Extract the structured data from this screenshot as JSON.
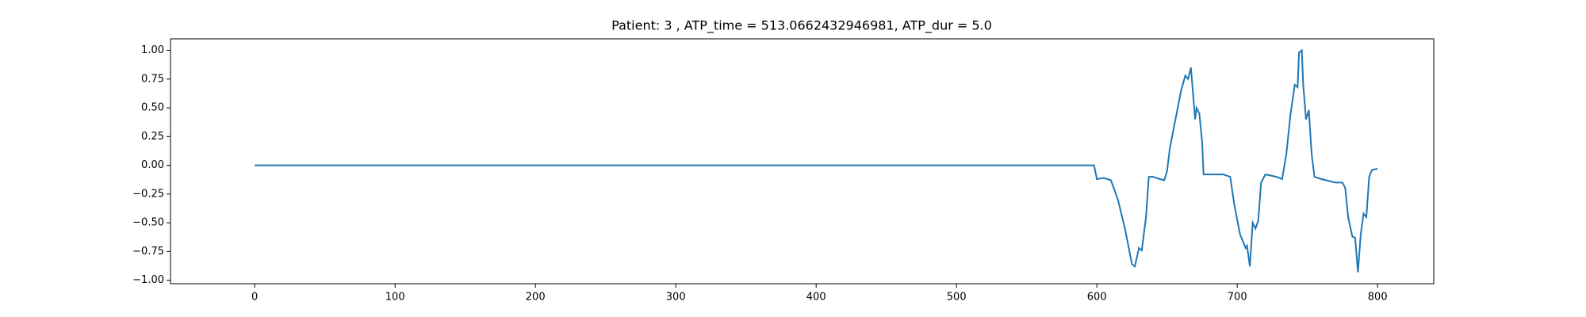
{
  "chart_data": {
    "type": "line",
    "title": "Patient: 3 , ATP_time = 513.0662432946981, ATP_dur = 5.0",
    "x": [
      0,
      598,
      600,
      605,
      610,
      615,
      620,
      625,
      627,
      630,
      632,
      635,
      637,
      640,
      645,
      648,
      650,
      652,
      656,
      660,
      663,
      665,
      667,
      668,
      670,
      671,
      673,
      675,
      676,
      680,
      690,
      695,
      698,
      702,
      706,
      707,
      709,
      711,
      713,
      715,
      717,
      720,
      728,
      732,
      735,
      738,
      741,
      743,
      744,
      746,
      747,
      749,
      751,
      753,
      755,
      760,
      770,
      775,
      777,
      779,
      782,
      784,
      786,
      788,
      790,
      792,
      794,
      796,
      800
    ],
    "series": [
      {
        "color": "#1f77b4",
        "values": [
          0,
          0,
          -0.12,
          -0.11,
          -0.13,
          -0.3,
          -0.55,
          -0.86,
          -0.88,
          -0.72,
          -0.74,
          -0.45,
          -0.1,
          -0.1,
          -0.12,
          -0.13,
          -0.05,
          0.15,
          0.4,
          0.65,
          0.78,
          0.75,
          0.85,
          0.7,
          0.4,
          0.5,
          0.45,
          0.2,
          -0.08,
          -0.08,
          -0.08,
          -0.1,
          -0.35,
          -0.6,
          -0.72,
          -0.7,
          -0.88,
          -0.5,
          -0.55,
          -0.48,
          -0.15,
          -0.08,
          -0.1,
          -0.12,
          0.1,
          0.45,
          0.7,
          0.68,
          0.98,
          1.0,
          0.7,
          0.4,
          0.48,
          0.1,
          -0.1,
          -0.12,
          -0.15,
          -0.15,
          -0.2,
          -0.45,
          -0.62,
          -0.63,
          -0.93,
          -0.6,
          -0.42,
          -0.45,
          -0.1,
          -0.04,
          -0.03
        ]
      }
    ],
    "xlim": [
      -60,
      840
    ],
    "xticks": [
      0,
      100,
      200,
      300,
      400,
      500,
      600,
      700,
      800
    ],
    "ylim": [
      -1.03,
      1.1
    ],
    "yticks": [
      {
        "value": -1,
        "label": "−1.00"
      },
      {
        "value": -0.75,
        "label": "−0.75"
      },
      {
        "value": -0.5,
        "label": "−0.50"
      },
      {
        "value": -0.25,
        "label": "−0.25"
      },
      {
        "value": 0,
        "label": "0.00"
      },
      {
        "value": 0.25,
        "label": "0.25"
      },
      {
        "value": 0.5,
        "label": "0.50"
      },
      {
        "value": 0.75,
        "label": "0.75"
      },
      {
        "value": 1,
        "label": "1.00"
      }
    ]
  }
}
